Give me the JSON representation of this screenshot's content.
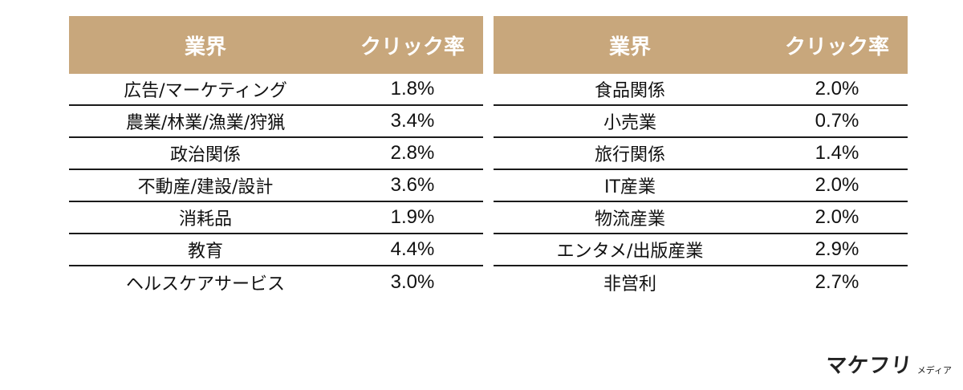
{
  "tables": [
    {
      "header": {
        "industry": "業界",
        "rate": "クリック率"
      },
      "rows": [
        {
          "industry": "広告/マーケティング",
          "rate": "1.8%"
        },
        {
          "industry": "農業/林業/漁業/狩猟",
          "rate": "3.4%"
        },
        {
          "industry": "政治関係",
          "rate": "2.8%"
        },
        {
          "industry": "不動産/建設/設計",
          "rate": "3.6%"
        },
        {
          "industry": "消耗品",
          "rate": "1.9%"
        },
        {
          "industry": "教育",
          "rate": "4.4%"
        },
        {
          "industry": "ヘルスケアサービス",
          "rate": "3.0%"
        }
      ]
    },
    {
      "header": {
        "industry": "業界",
        "rate": "クリック率"
      },
      "rows": [
        {
          "industry": "食品関係",
          "rate": "2.0%"
        },
        {
          "industry": "小売業",
          "rate": "0.7%"
        },
        {
          "industry": "旅行関係",
          "rate": "1.4%"
        },
        {
          "industry": "IT産業",
          "rate": "2.0%"
        },
        {
          "industry": "物流産業",
          "rate": "2.0%"
        },
        {
          "industry": "エンタメ/出版産業",
          "rate": "2.9%"
        },
        {
          "industry": "非営利",
          "rate": "2.7%"
        }
      ]
    }
  ],
  "logo": {
    "main": "マケフリ",
    "sub": "メディア"
  },
  "colors": {
    "header_bg": "#c8a77c",
    "header_text": "#ffffff",
    "rule": "#1a1a1a"
  }
}
